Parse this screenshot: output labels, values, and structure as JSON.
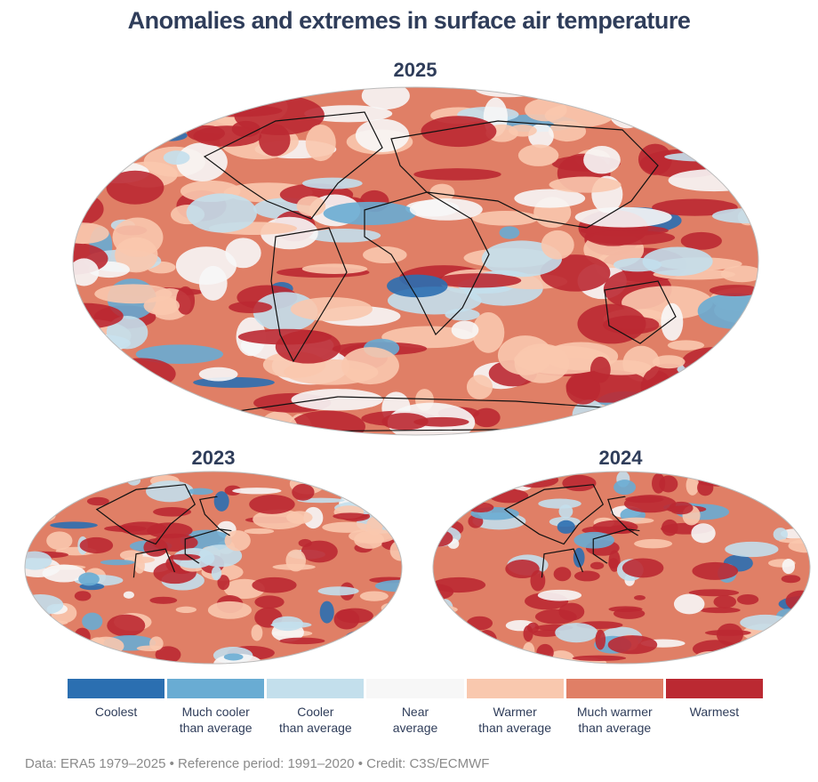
{
  "title": "Anomalies and extremes in surface air temperature",
  "maps": [
    {
      "year": "2025"
    },
    {
      "year": "2023"
    },
    {
      "year": "2024"
    }
  ],
  "legend": [
    {
      "line1": "Coolest",
      "line2": "",
      "color": "#2b6fb1"
    },
    {
      "line1": "Much cooler",
      "line2": "than average",
      "color": "#69acd3"
    },
    {
      "line1": "Cooler",
      "line2": "than average",
      "color": "#c3dfec"
    },
    {
      "line1": "Near",
      "line2": "average",
      "color": "#f7f7f7"
    },
    {
      "line1": "Warmer",
      "line2": "than average",
      "color": "#f9c8ae"
    },
    {
      "line1": "Much warmer",
      "line2": "than average",
      "color": "#e07f66"
    },
    {
      "line1": "Warmest",
      "line2": "",
      "color": "#bb2932"
    }
  ],
  "footer": "Data: ERA5 1979–2025 • Reference period: 1991–2020 • Credit: C3S/ECMWF"
}
